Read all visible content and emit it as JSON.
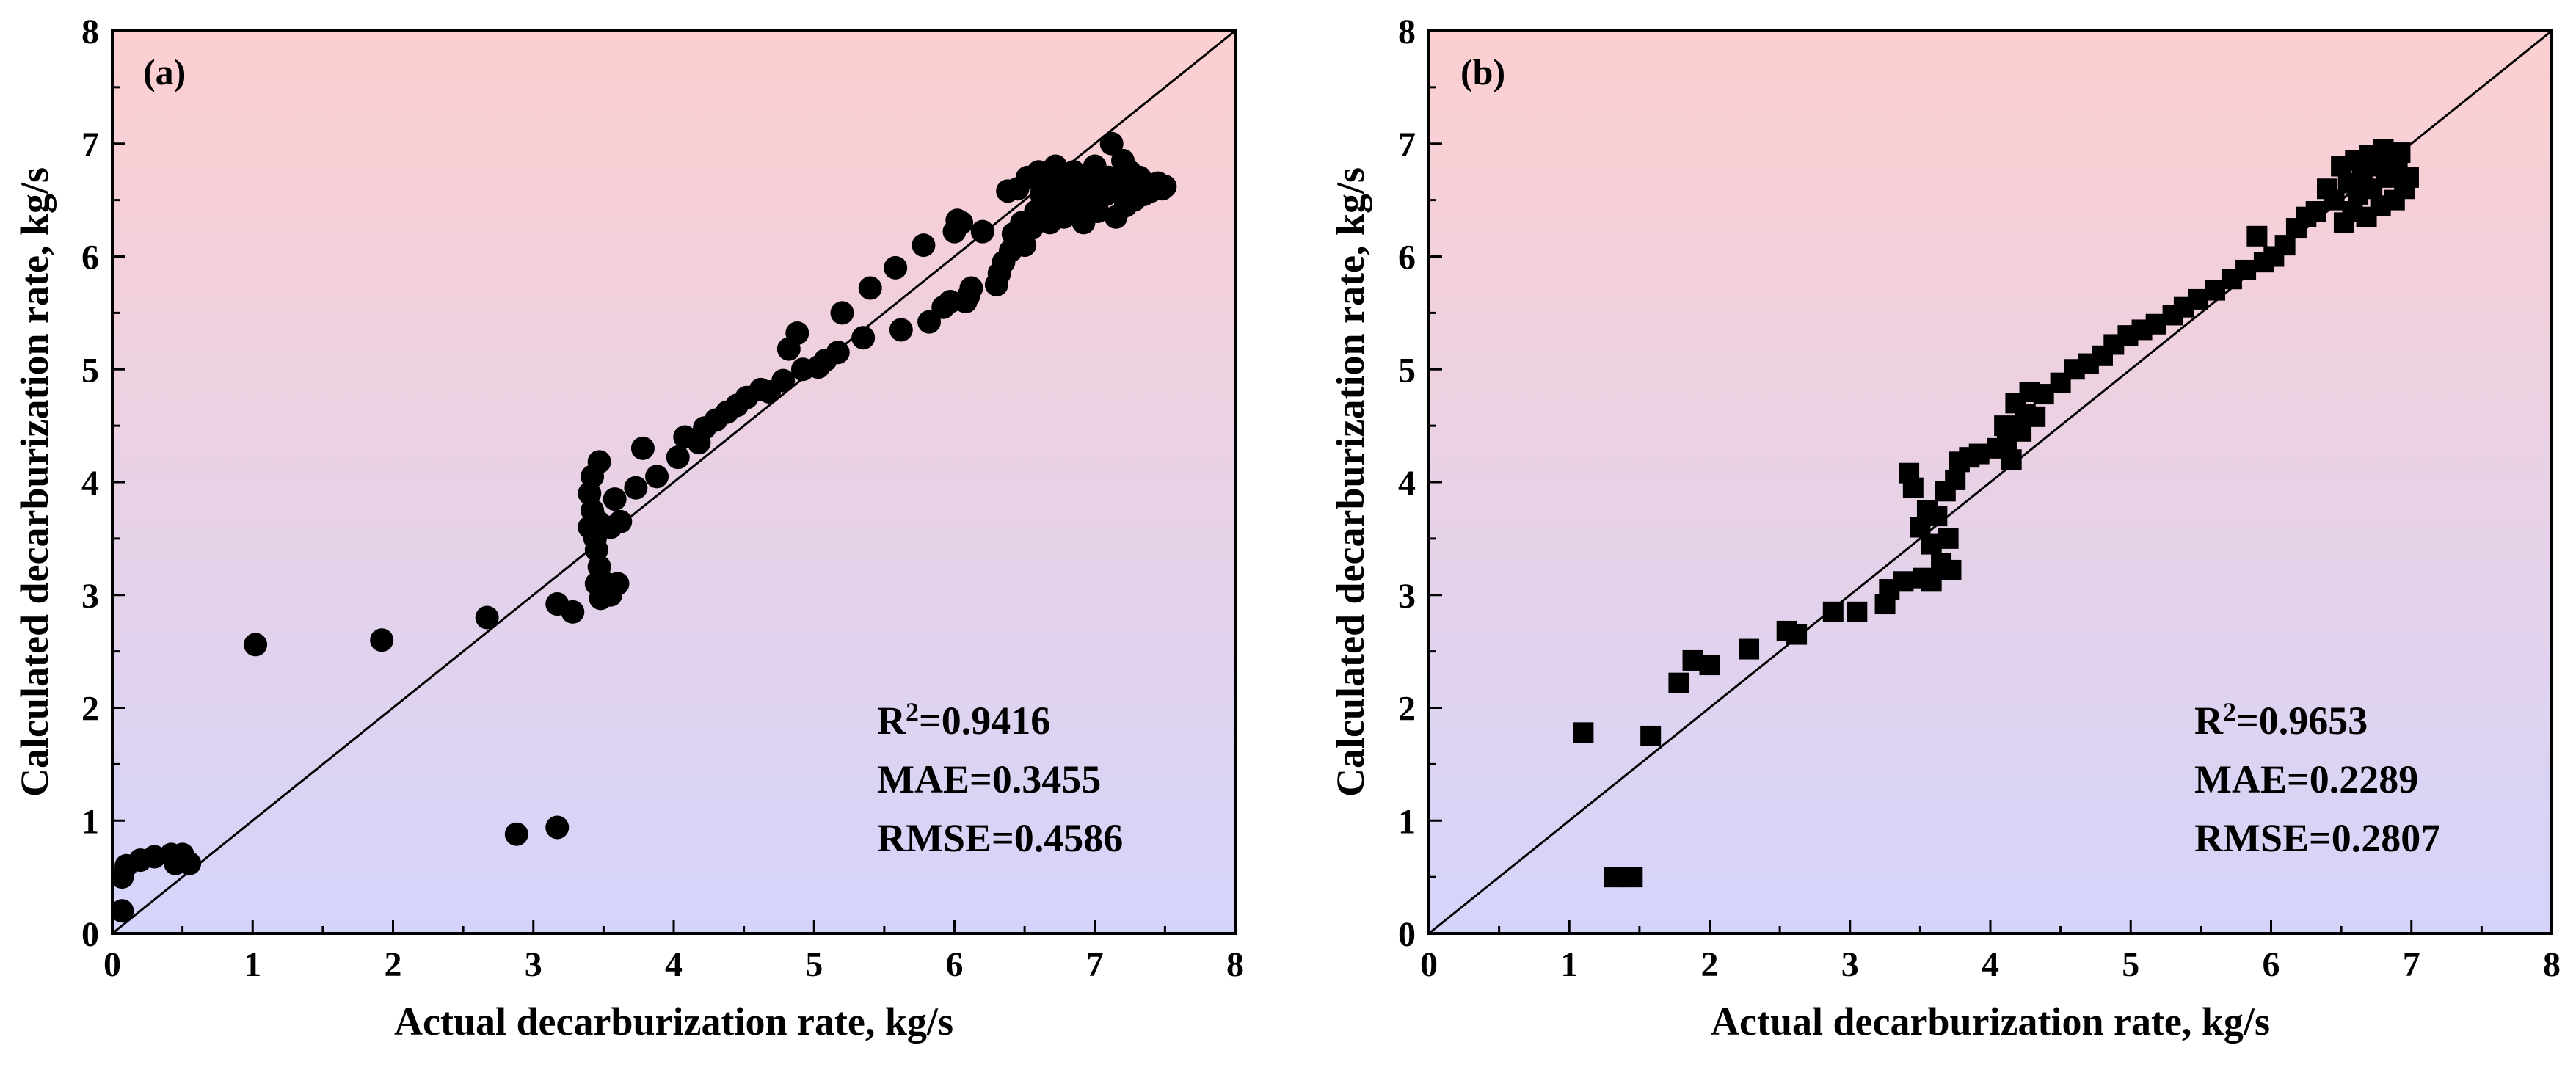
{
  "colors": {
    "gradient_top": "#fdcfd0",
    "gradient_bottom": "#d4d4fb",
    "marker": "#000000",
    "axis": "#000000"
  },
  "chart_data": [
    {
      "type": "scatter",
      "panel_label": "(a)",
      "marker": "circle",
      "xlabel": "Actual decarburization rate, kg/s",
      "ylabel": "Calculated decarburization rate, kg/s",
      "xlim": [
        0,
        8
      ],
      "ylim": [
        0,
        8
      ],
      "xticks": [
        "0",
        "1",
        "2",
        "3",
        "4",
        "5",
        "6",
        "7",
        "8"
      ],
      "yticks": [
        "0",
        "1",
        "2",
        "3",
        "4",
        "5",
        "6",
        "7",
        "8"
      ],
      "reference_line": "y = x",
      "grid": false,
      "stats": [
        {
          "label": "R",
          "sup": "2",
          "text": "=0.9416"
        },
        {
          "label": "MAE",
          "sup": "",
          "text": "=0.3455"
        },
        {
          "label": "RMSE",
          "sup": "",
          "text": "=0.4586"
        }
      ],
      "points": [
        [
          0.07,
          0.2
        ],
        [
          0.07,
          0.5
        ],
        [
          0.1,
          0.6
        ],
        [
          0.2,
          0.65
        ],
        [
          0.3,
          0.68
        ],
        [
          0.42,
          0.7
        ],
        [
          0.45,
          0.62
        ],
        [
          0.5,
          0.68
        ],
        [
          0.55,
          0.62
        ],
        [
          0.5,
          0.7
        ],
        [
          1.02,
          2.56
        ],
        [
          1.92,
          2.6
        ],
        [
          2.67,
          2.8
        ],
        [
          2.88,
          0.88
        ],
        [
          3.17,
          0.94
        ],
        [
          3.17,
          2.92
        ],
        [
          3.28,
          2.85
        ],
        [
          3.4,
          3.9
        ],
        [
          3.4,
          3.6
        ],
        [
          3.42,
          4.05
        ],
        [
          3.42,
          3.75
        ],
        [
          3.44,
          3.5
        ],
        [
          3.45,
          3.4
        ],
        [
          3.46,
          3.65
        ],
        [
          3.47,
          3.25
        ],
        [
          3.45,
          3.1
        ],
        [
          3.47,
          4.18
        ],
        [
          3.48,
          2.97
        ],
        [
          3.52,
          3.1
        ],
        [
          3.55,
          3.0
        ],
        [
          3.55,
          3.6
        ],
        [
          3.58,
          3.85
        ],
        [
          3.6,
          3.1
        ],
        [
          3.62,
          3.65
        ],
        [
          3.73,
          3.95
        ],
        [
          3.78,
          4.3
        ],
        [
          3.88,
          4.05
        ],
        [
          4.03,
          4.22
        ],
        [
          4.08,
          4.4
        ],
        [
          4.18,
          4.35
        ],
        [
          4.22,
          4.48
        ],
        [
          4.3,
          4.55
        ],
        [
          4.38,
          4.62
        ],
        [
          4.45,
          4.68
        ],
        [
          4.52,
          4.75
        ],
        [
          4.62,
          4.82
        ],
        [
          4.68,
          4.8
        ],
        [
          4.78,
          4.9
        ],
        [
          4.82,
          5.18
        ],
        [
          4.88,
          5.32
        ],
        [
          4.92,
          5.0
        ],
        [
          5.03,
          5.02
        ],
        [
          5.08,
          5.08
        ],
        [
          5.17,
          5.15
        ],
        [
          5.2,
          5.5
        ],
        [
          5.35,
          5.28
        ],
        [
          5.4,
          5.72
        ],
        [
          5.58,
          5.9
        ],
        [
          5.62,
          5.35
        ],
        [
          5.78,
          6.1
        ],
        [
          5.82,
          5.42
        ],
        [
          5.92,
          5.55
        ],
        [
          5.97,
          5.6
        ],
        [
          6.0,
          6.22
        ],
        [
          6.02,
          6.32
        ],
        [
          6.05,
          6.3
        ],
        [
          6.08,
          5.6
        ],
        [
          6.1,
          5.65
        ],
        [
          6.12,
          5.72
        ],
        [
          6.2,
          6.22
        ],
        [
          6.3,
          5.75
        ],
        [
          6.32,
          5.85
        ],
        [
          6.35,
          5.95
        ],
        [
          6.38,
          6.58
        ],
        [
          6.4,
          6.05
        ],
        [
          6.42,
          6.2
        ],
        [
          6.45,
          6.6
        ],
        [
          6.48,
          6.3
        ],
        [
          6.5,
          6.1
        ],
        [
          6.52,
          6.7
        ],
        [
          6.55,
          6.25
        ],
        [
          6.58,
          6.4
        ],
        [
          6.6,
          6.75
        ],
        [
          6.62,
          6.55
        ],
        [
          6.65,
          6.72
        ],
        [
          6.68,
          6.3
        ],
        [
          6.7,
          6.45
        ],
        [
          6.72,
          6.8
        ],
        [
          6.75,
          6.6
        ],
        [
          6.78,
          6.35
        ],
        [
          6.8,
          6.7
        ],
        [
          6.82,
          6.5
        ],
        [
          6.85,
          6.75
        ],
        [
          6.88,
          6.4
        ],
        [
          6.9,
          6.6
        ],
        [
          6.92,
          6.3
        ],
        [
          6.95,
          6.72
        ],
        [
          6.98,
          6.5
        ],
        [
          7.0,
          6.8
        ],
        [
          7.02,
          6.4
        ],
        [
          7.05,
          6.65
        ],
        [
          7.08,
          6.55
        ],
        [
          7.1,
          6.7
        ],
        [
          7.12,
          7.0
        ],
        [
          7.15,
          6.35
        ],
        [
          7.18,
          6.6
        ],
        [
          7.2,
          6.85
        ],
        [
          7.22,
          6.45
        ],
        [
          7.25,
          6.75
        ],
        [
          7.28,
          6.5
        ],
        [
          7.3,
          6.65
        ],
        [
          7.32,
          6.7
        ],
        [
          7.35,
          6.55
        ],
        [
          7.38,
          6.6
        ],
        [
          7.4,
          6.58
        ],
        [
          7.42,
          6.62
        ],
        [
          7.45,
          6.65
        ],
        [
          7.48,
          6.6
        ],
        [
          7.5,
          6.62
        ]
      ]
    },
    {
      "type": "scatter",
      "panel_label": "(b)",
      "marker": "square",
      "xlabel": "Actual decarburization rate, kg/s",
      "ylabel": "Calculated decarburization rate, kg/s",
      "xlim": [
        0,
        8
      ],
      "ylim": [
        0,
        8
      ],
      "xticks": [
        "0",
        "1",
        "2",
        "3",
        "4",
        "5",
        "6",
        "7",
        "8"
      ],
      "yticks": [
        "0",
        "1",
        "2",
        "3",
        "4",
        "5",
        "6",
        "7",
        "8"
      ],
      "reference_line": "y = x",
      "grid": false,
      "stats": [
        {
          "label": "R",
          "sup": "2",
          "text": "=0.9653"
        },
        {
          "label": "MAE",
          "sup": "",
          "text": "=0.2289"
        },
        {
          "label": "RMSE",
          "sup": "",
          "text": "=0.2807"
        }
      ],
      "points": [
        [
          1.1,
          1.78
        ],
        [
          1.32,
          0.5
        ],
        [
          1.45,
          0.5
        ],
        [
          1.58,
          1.75
        ],
        [
          1.78,
          2.22
        ],
        [
          1.88,
          2.42
        ],
        [
          2.0,
          2.38
        ],
        [
          2.28,
          2.52
        ],
        [
          2.55,
          2.68
        ],
        [
          2.62,
          2.65
        ],
        [
          2.88,
          2.85
        ],
        [
          3.05,
          2.85
        ],
        [
          3.25,
          2.92
        ],
        [
          3.28,
          3.05
        ],
        [
          3.38,
          3.12
        ],
        [
          3.42,
          4.08
        ],
        [
          3.45,
          3.95
        ],
        [
          3.5,
          3.6
        ],
        [
          3.52,
          3.15
        ],
        [
          3.55,
          3.75
        ],
        [
          3.58,
          3.45
        ],
        [
          3.58,
          3.12
        ],
        [
          3.62,
          3.7
        ],
        [
          3.65,
          3.28
        ],
        [
          3.68,
          3.92
        ],
        [
          3.7,
          3.5
        ],
        [
          3.72,
          3.22
        ],
        [
          3.75,
          4.02
        ],
        [
          3.78,
          4.18
        ],
        [
          3.85,
          4.22
        ],
        [
          3.92,
          4.25
        ],
        [
          4.05,
          4.3
        ],
        [
          4.1,
          4.5
        ],
        [
          4.12,
          4.35
        ],
        [
          4.15,
          4.2
        ],
        [
          4.18,
          4.7
        ],
        [
          4.22,
          4.45
        ],
        [
          4.25,
          4.6
        ],
        [
          4.28,
          4.8
        ],
        [
          4.32,
          4.58
        ],
        [
          4.38,
          4.78
        ],
        [
          4.5,
          4.88
        ],
        [
          4.6,
          5.0
        ],
        [
          4.7,
          5.05
        ],
        [
          4.8,
          5.12
        ],
        [
          4.88,
          5.22
        ],
        [
          4.98,
          5.3
        ],
        [
          5.08,
          5.35
        ],
        [
          5.18,
          5.4
        ],
        [
          5.3,
          5.48
        ],
        [
          5.38,
          5.55
        ],
        [
          5.48,
          5.62
        ],
        [
          5.6,
          5.7
        ],
        [
          5.72,
          5.8
        ],
        [
          5.82,
          5.88
        ],
        [
          5.9,
          6.18
        ],
        [
          5.95,
          5.95
        ],
        [
          6.02,
          6.0
        ],
        [
          6.1,
          6.1
        ],
        [
          6.18,
          6.25
        ],
        [
          6.25,
          6.35
        ],
        [
          6.32,
          6.4
        ],
        [
          6.4,
          6.6
        ],
        [
          6.45,
          6.5
        ],
        [
          6.5,
          6.8
        ],
        [
          6.52,
          6.3
        ],
        [
          6.55,
          6.65
        ],
        [
          6.58,
          6.4
        ],
        [
          6.6,
          6.85
        ],
        [
          6.62,
          6.55
        ],
        [
          6.65,
          6.72
        ],
        [
          6.68,
          6.35
        ],
        [
          6.7,
          6.9
        ],
        [
          6.72,
          6.6
        ],
        [
          6.75,
          6.8
        ],
        [
          6.78,
          6.45
        ],
        [
          6.8,
          6.95
        ],
        [
          6.82,
          6.7
        ],
        [
          6.85,
          6.85
        ],
        [
          6.88,
          6.5
        ],
        [
          6.9,
          6.75
        ],
        [
          6.92,
          6.92
        ],
        [
          6.95,
          6.6
        ],
        [
          6.98,
          6.7
        ]
      ]
    }
  ]
}
